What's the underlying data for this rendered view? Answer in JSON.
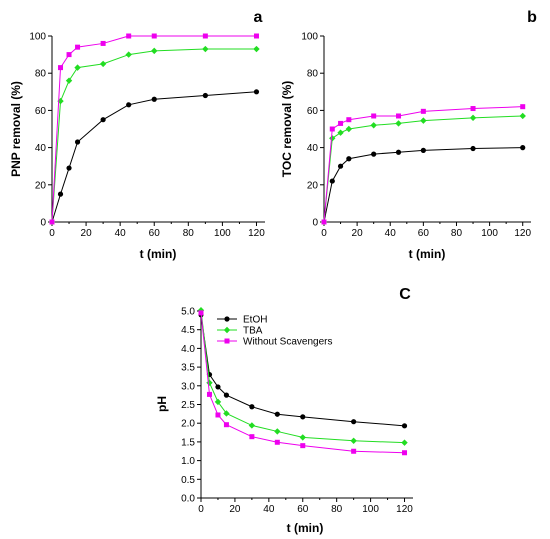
{
  "series_styles": [
    {
      "name": "EtOH",
      "color": "#000000",
      "marker": "circle"
    },
    {
      "name": "TBA",
      "color": "#22dd22",
      "marker": "diamond"
    },
    {
      "name": "Without Scavengers",
      "color": "#ee00ee",
      "marker": "square"
    }
  ],
  "chart_data": [
    {
      "id": "a",
      "type": "line",
      "panel_label": "a",
      "xlabel": "t (min)",
      "ylabel": "PNP removal (%)",
      "xlim": [
        0,
        125
      ],
      "ylim": [
        0,
        100
      ],
      "xticks": [
        0,
        20,
        40,
        60,
        80,
        100,
        120
      ],
      "yticks": [
        0,
        20,
        40,
        60,
        80,
        100
      ],
      "legend": false,
      "series": [
        {
          "style": 0,
          "x": [
            0,
            5,
            10,
            15,
            30,
            45,
            60,
            90,
            120
          ],
          "y": [
            0,
            15,
            29,
            43,
            55,
            63,
            66,
            68,
            70
          ]
        },
        {
          "style": 1,
          "x": [
            0,
            5,
            10,
            15,
            30,
            45,
            60,
            90,
            120
          ],
          "y": [
            0,
            65,
            76,
            83,
            85,
            90,
            92,
            93,
            93
          ]
        },
        {
          "style": 2,
          "x": [
            0,
            5,
            10,
            15,
            30,
            45,
            60,
            90,
            120
          ],
          "y": [
            0,
            83,
            90,
            94,
            96,
            100,
            100,
            100,
            100
          ]
        }
      ]
    },
    {
      "id": "b",
      "type": "line",
      "panel_label": "b",
      "xlabel": "t (min)",
      "ylabel": "TOC removal (%)",
      "xlim": [
        0,
        125
      ],
      "ylim": [
        0,
        100
      ],
      "xticks": [
        0,
        20,
        40,
        60,
        80,
        100,
        120
      ],
      "yticks": [
        0,
        20,
        40,
        60,
        80,
        100
      ],
      "legend": false,
      "series": [
        {
          "style": 0,
          "x": [
            0,
            5,
            10,
            15,
            30,
            45,
            60,
            90,
            120
          ],
          "y": [
            0,
            22,
            30,
            34,
            36.5,
            37.5,
            38.5,
            39.5,
            40
          ]
        },
        {
          "style": 1,
          "x": [
            0,
            5,
            10,
            15,
            30,
            45,
            60,
            90,
            120
          ],
          "y": [
            0,
            45,
            48,
            50,
            52,
            53,
            54.5,
            56,
            57
          ]
        },
        {
          "style": 2,
          "x": [
            0,
            5,
            10,
            15,
            30,
            45,
            60,
            90,
            120
          ],
          "y": [
            0,
            50,
            53,
            55,
            57,
            57,
            59.5,
            61,
            62
          ]
        }
      ]
    },
    {
      "id": "c",
      "type": "line",
      "panel_label": "C",
      "xlabel": "t (min)",
      "ylabel": "pH",
      "xlim": [
        0,
        125
      ],
      "ylim": [
        0,
        5.0
      ],
      "xticks": [
        0,
        20,
        40,
        60,
        80,
        100,
        120
      ],
      "yticks": [
        "0.0",
        "0.5",
        "1.0",
        "1.5",
        "2.0",
        "2.5",
        "3.0",
        "3.5",
        "4.0",
        "4.5",
        "5.0"
      ],
      "legend": true,
      "legend_position": "top-right",
      "series": [
        {
          "style": 0,
          "x": [
            0,
            5,
            10,
            15,
            30,
            45,
            60,
            90,
            120
          ],
          "y": [
            4.9,
            3.3,
            2.97,
            2.75,
            2.44,
            2.24,
            2.17,
            2.04,
            1.93
          ]
        },
        {
          "style": 1,
          "x": [
            0,
            5,
            10,
            15,
            30,
            45,
            60,
            90,
            120
          ],
          "y": [
            5.02,
            3.08,
            2.57,
            2.26,
            1.94,
            1.78,
            1.62,
            1.53,
            1.48
          ]
        },
        {
          "style": 2,
          "x": [
            0,
            5,
            10,
            15,
            30,
            45,
            60,
            90,
            120
          ],
          "y": [
            4.95,
            2.77,
            2.22,
            1.96,
            1.64,
            1.49,
            1.4,
            1.25,
            1.21
          ]
        }
      ]
    }
  ]
}
